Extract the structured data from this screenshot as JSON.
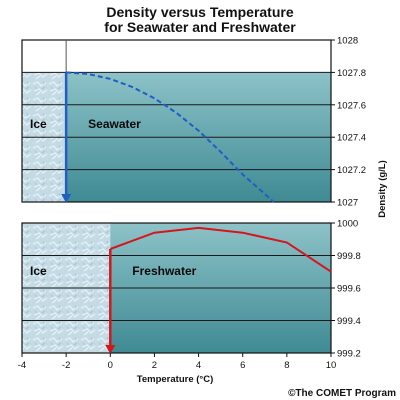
{
  "title_lines": [
    "Density versus Temperature",
    "for Seawater and Freshwater"
  ],
  "credit": "©The COMET Program",
  "colors": {
    "seawater_curve": "#1f5fc4",
    "freshwater_curve": "#d4161d",
    "water": "#5a9fa6",
    "ice": "#b9d4df"
  },
  "chart_data": [
    {
      "type": "line",
      "panel": "seawater",
      "ylabel": "Density (g/L)",
      "xlim": [
        -4,
        10
      ],
      "ylim": [
        1027,
        1028
      ],
      "yticks": [
        "1027",
        "1027.2",
        "1027.4",
        "1027.6",
        "1027.8",
        "1028"
      ],
      "grid": true,
      "regions": [
        {
          "label": "Ice",
          "x_range": [
            -4,
            -2
          ]
        },
        {
          "label": "Seawater",
          "x_range": [
            -2,
            10
          ]
        }
      ],
      "series": [
        {
          "style": "dashed",
          "x": [
            -2,
            -1,
            0,
            1,
            2,
            3,
            4,
            5,
            6,
            7,
            7.4
          ],
          "y": [
            1027.8,
            1027.79,
            1027.76,
            1027.71,
            1027.64,
            1027.55,
            1027.44,
            1027.31,
            1027.17,
            1027.05,
            1027.0
          ]
        }
      ],
      "marker": {
        "x": -2,
        "y_from": 1027.8,
        "y_to": 1027,
        "arrow": "down"
      },
      "surface_level": 1027.8
    },
    {
      "type": "line",
      "panel": "freshwater",
      "xlabel": "Temperature (°C)",
      "xlim": [
        -4,
        10
      ],
      "xticks": [
        "-4",
        "-2",
        "0",
        "2",
        "4",
        "6",
        "8",
        "10"
      ],
      "ylim": [
        999.2,
        1000
      ],
      "yticks": [
        "999.2",
        "999.4",
        "999.6",
        "999.8",
        "1000"
      ],
      "grid": true,
      "regions": [
        {
          "label": "Ice",
          "x_range": [
            -4,
            0
          ]
        },
        {
          "label": "Freshwater",
          "x_range": [
            0,
            10
          ]
        }
      ],
      "series": [
        {
          "style": "solid",
          "x": [
            0,
            2,
            4,
            6,
            8,
            10
          ],
          "y": [
            999.84,
            999.94,
            999.97,
            999.94,
            999.88,
            999.7
          ]
        }
      ],
      "marker": {
        "x": 0,
        "y_from": 999.84,
        "y_to": 999.2,
        "arrow": "down"
      },
      "surface_level": 1000
    }
  ]
}
